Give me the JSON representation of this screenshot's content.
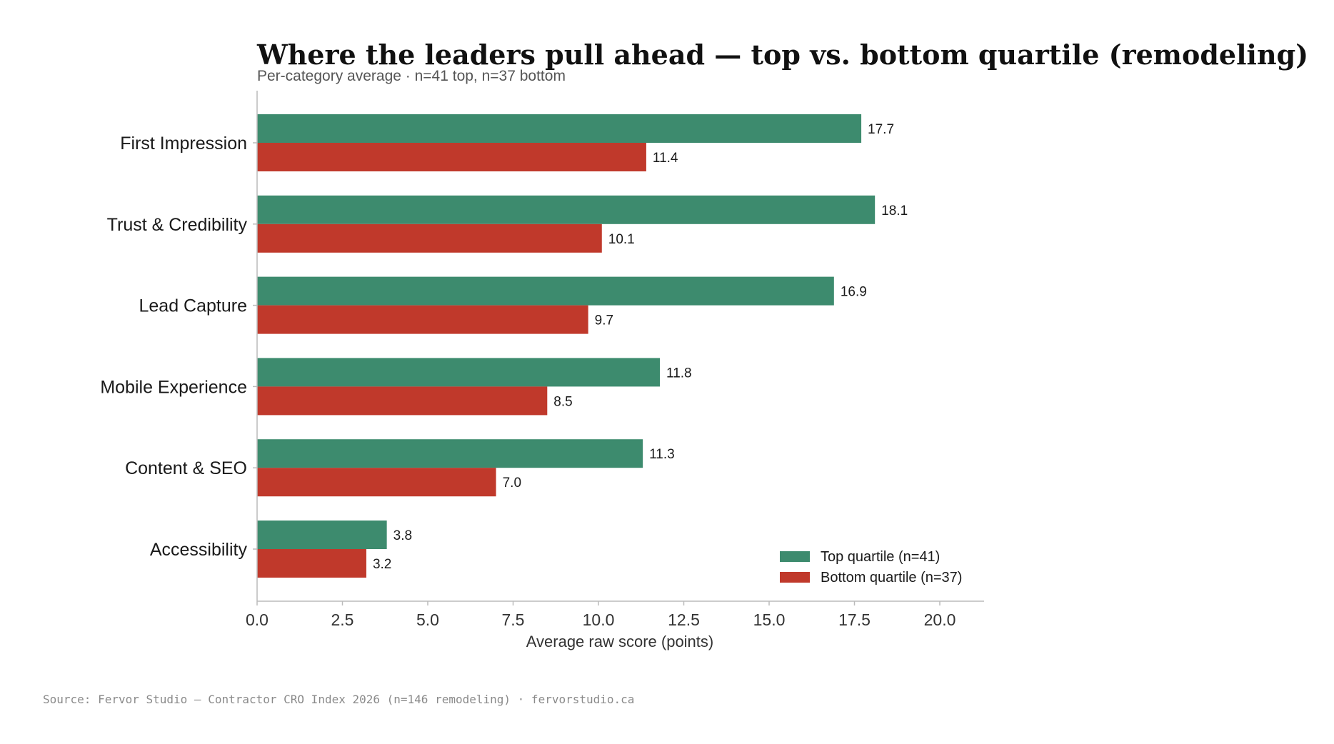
{
  "chart_data": {
    "type": "bar",
    "orientation": "horizontal",
    "title": "Where the leaders pull ahead — top vs. bottom quartile (remodeling)",
    "subtitle": "Per-category average · n=41 top, n=37 bottom",
    "xlabel": "Average raw score (points)",
    "ylabel": "",
    "xlim": [
      0,
      21.3
    ],
    "xticks": [
      "0.0",
      "2.5",
      "5.0",
      "7.5",
      "10.0",
      "12.5",
      "15.0",
      "17.5",
      "20.0"
    ],
    "categories": [
      "First Impression",
      "Trust & Credibility",
      "Lead Capture",
      "Mobile Experience",
      "Content & SEO",
      "Accessibility"
    ],
    "series": [
      {
        "name": "Top quartile (n=41)",
        "color": "#3d8b6e",
        "values": [
          17.7,
          18.1,
          16.9,
          11.8,
          11.3,
          3.8
        ]
      },
      {
        "name": "Bottom quartile (n=37)",
        "color": "#c0392b",
        "values": [
          11.4,
          10.1,
          9.7,
          8.5,
          7.0,
          3.2
        ]
      }
    ],
    "legend_position": "lower-right",
    "grid": false,
    "source": "Source: Fervor Studio — Contractor CRO Index 2026 (n=146 remodeling) · fervorstudio.ca"
  }
}
